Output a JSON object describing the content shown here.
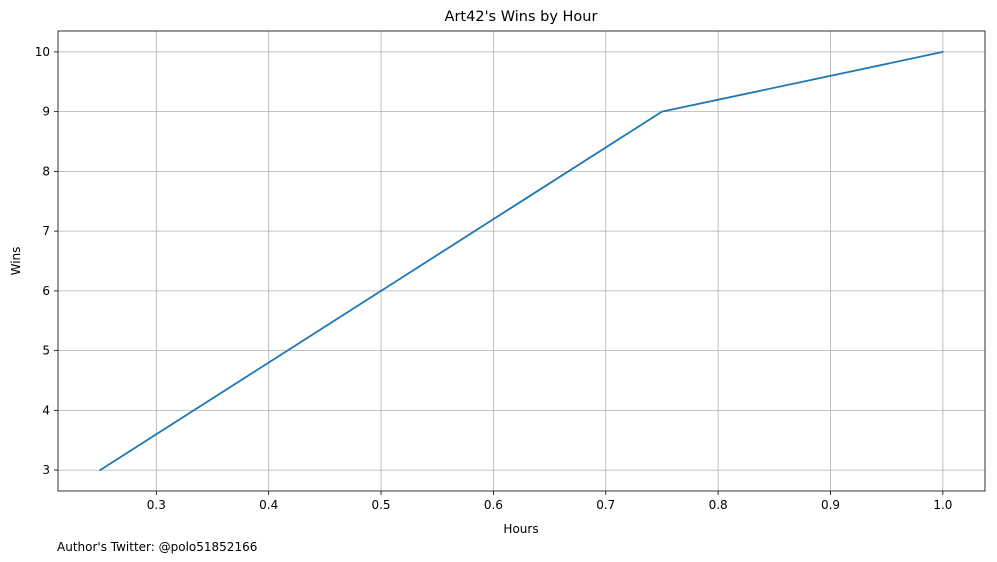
{
  "chart_data": {
    "type": "line",
    "title": "Art42's Wins by Hour",
    "xlabel": "Hours",
    "ylabel": "Wins",
    "xlim": [
      0.2125,
      1.0375
    ],
    "ylim": [
      2.65,
      10.35
    ],
    "xticks": [
      0.3,
      0.4,
      0.5,
      0.6,
      0.7,
      0.8,
      0.9,
      1.0
    ],
    "xtick_labels": [
      "0.3",
      "0.4",
      "0.5",
      "0.6",
      "0.7",
      "0.8",
      "0.9",
      "1.0"
    ],
    "yticks": [
      3,
      4,
      5,
      6,
      7,
      8,
      9,
      10
    ],
    "ytick_labels": [
      "3",
      "4",
      "5",
      "6",
      "7",
      "8",
      "9",
      "10"
    ],
    "grid": true,
    "series": [
      {
        "color": "#1f77b4",
        "x": [
          0.25,
          0.5,
          0.75,
          1.0
        ],
        "y": [
          3,
          6,
          9,
          10
        ]
      }
    ],
    "footer_text": "Author's Twitter: @polo51852166"
  }
}
